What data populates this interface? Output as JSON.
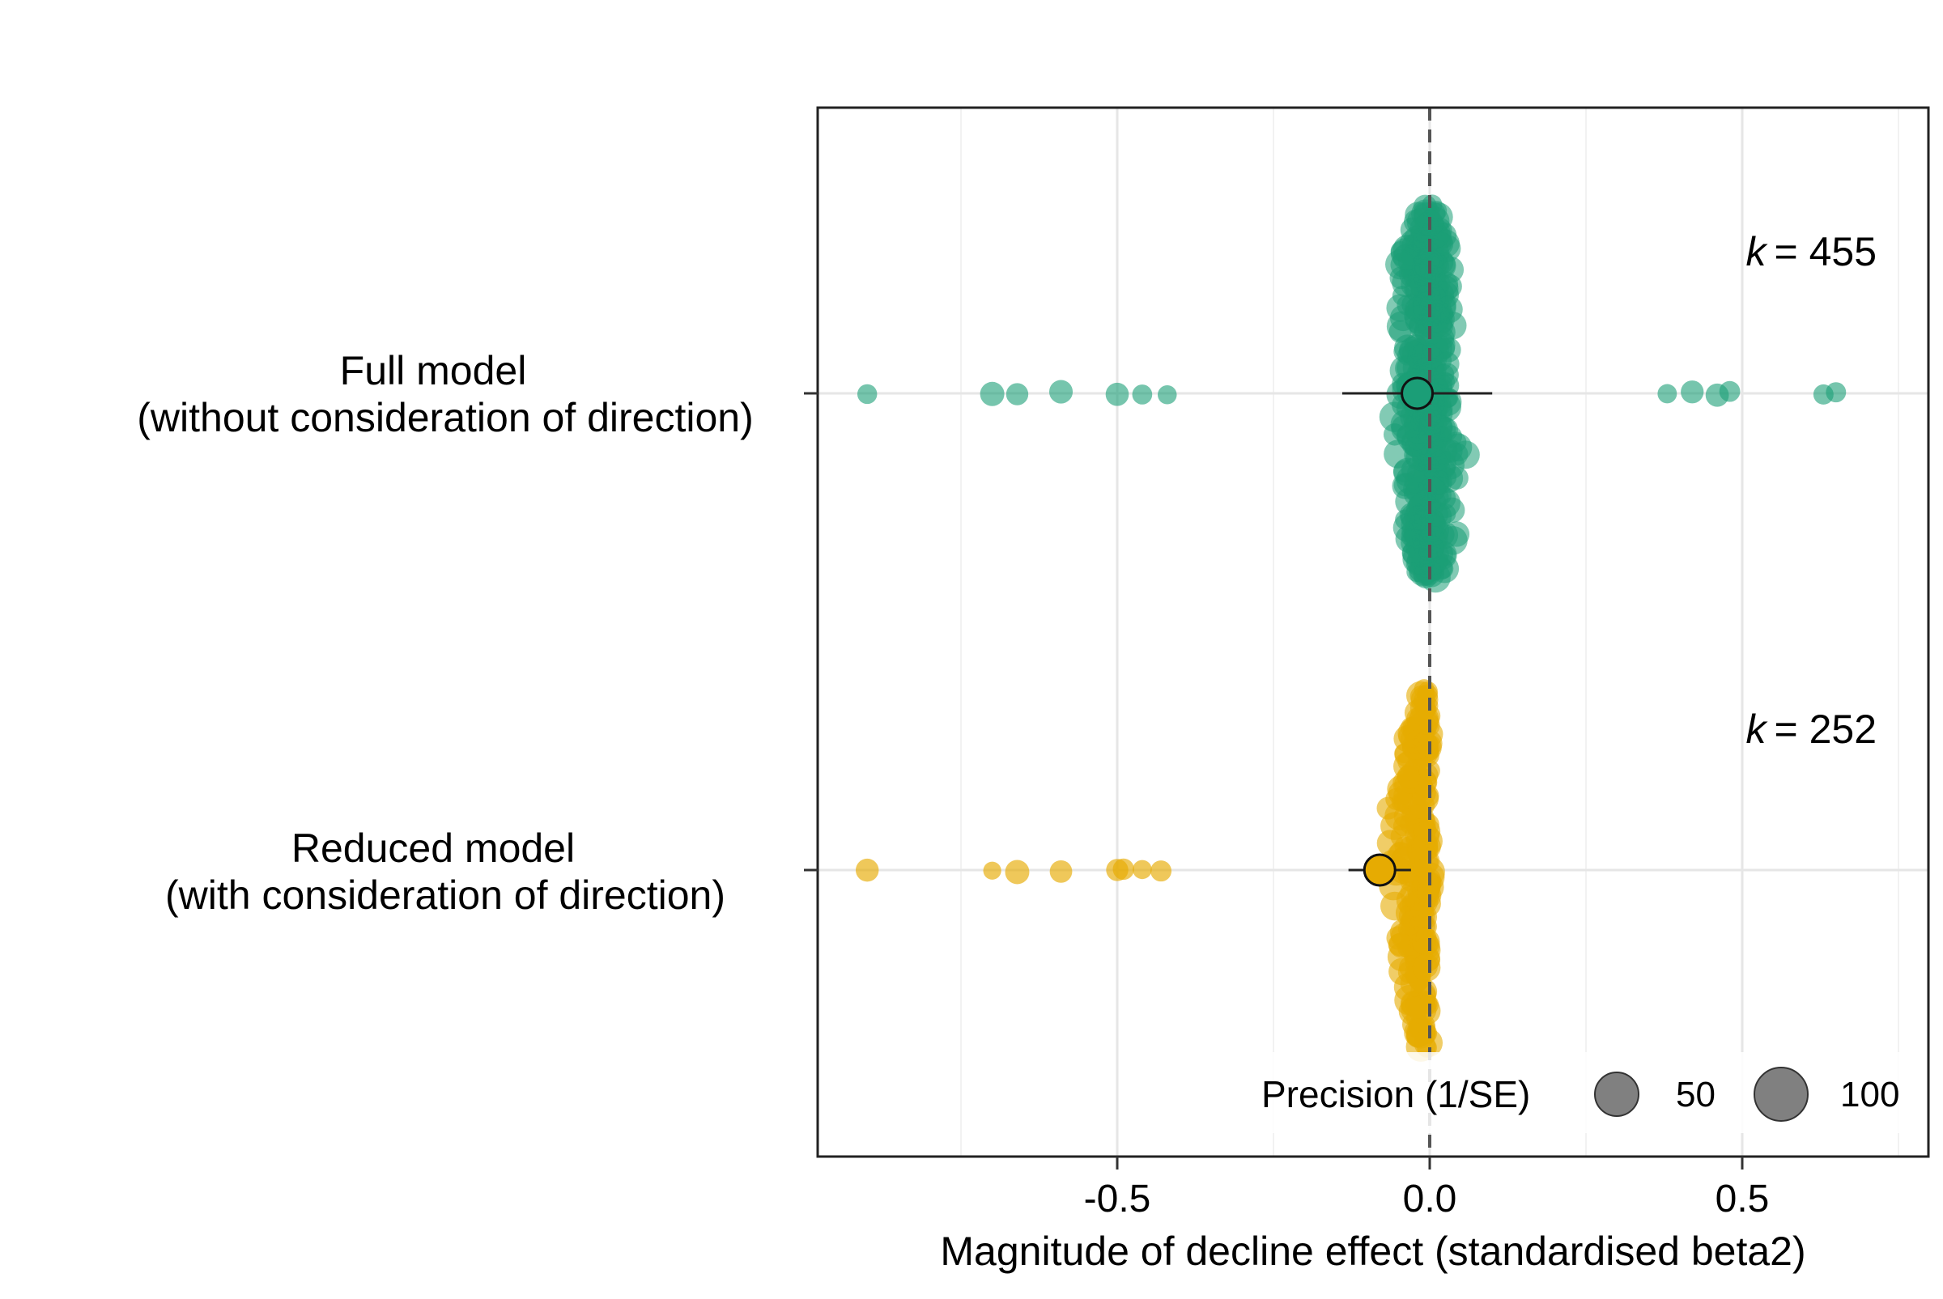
{
  "chart_data": {
    "type": "scatter",
    "subtype": "orchard-plot",
    "xlabel": "Magnitude of decline effect (standardised beta2)",
    "xlim": [
      -1.0,
      0.78
    ],
    "x_ticks": [
      -0.5,
      0.0,
      0.5
    ],
    "x_tick_labels": [
      "-0.5",
      "0.0",
      "0.5"
    ],
    "reference_line": 0.0,
    "grid": true,
    "categories": [
      {
        "label_line1": "Full model",
        "label_line2": "(without consideration of direction)",
        "k_label": "= 455",
        "k_symbol": "k",
        "k": 455,
        "color": "#1b9e77",
        "estimate": -0.02,
        "ci": [
          -0.14,
          0.1
        ],
        "x_range": [
          -0.9,
          0.65
        ]
      },
      {
        "label_line1": "Reduced model",
        "label_line2": "(with consideration of direction)",
        "k_label": "= 252",
        "k_symbol": "k",
        "k": 252,
        "color": "#e6ab02",
        "estimate": -0.08,
        "ci": [
          -0.13,
          -0.03
        ],
        "x_range": [
          -0.9,
          0.0
        ]
      }
    ],
    "legend": {
      "title": "Precision (1/SE)",
      "entries": [
        "50",
        "100"
      ],
      "placement": "bottom-right inside"
    }
  }
}
